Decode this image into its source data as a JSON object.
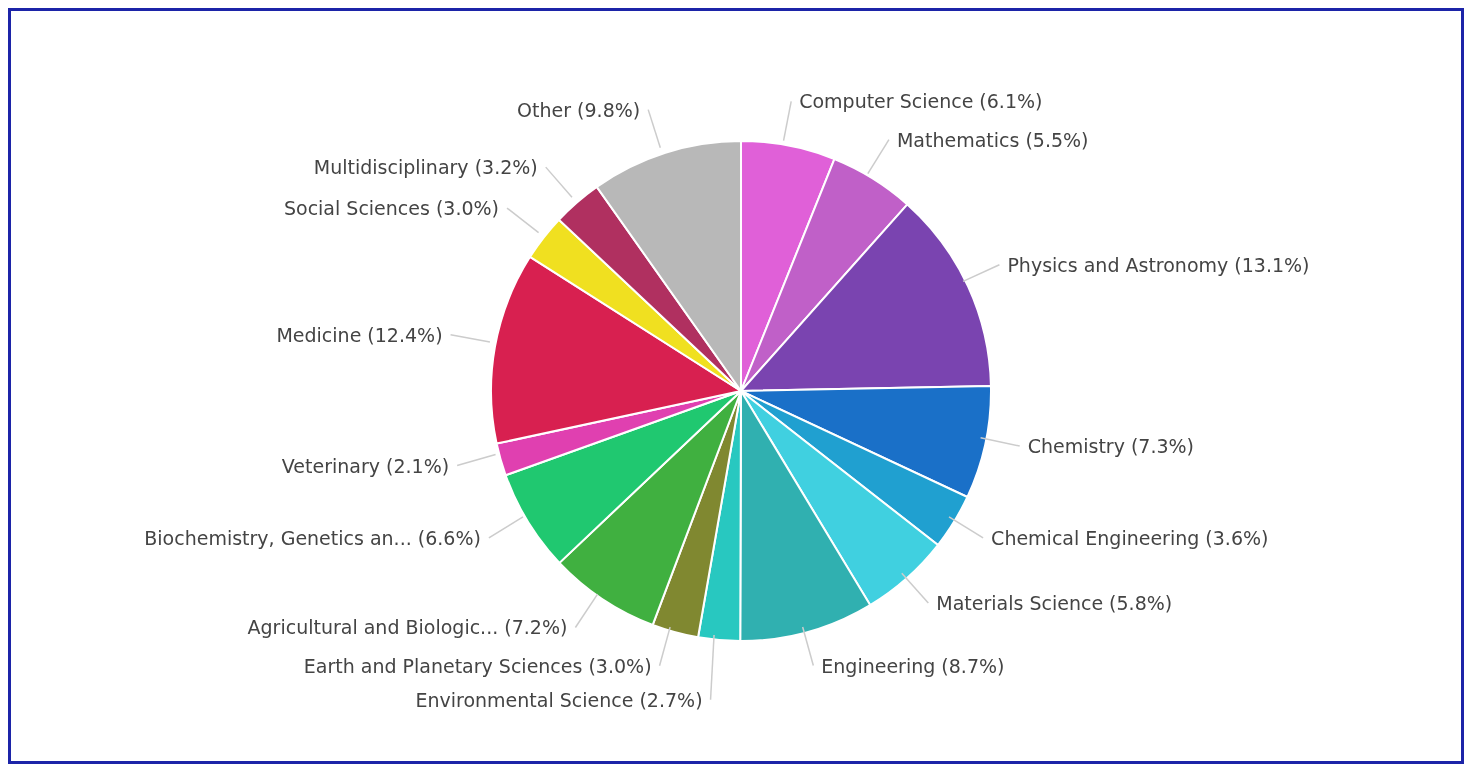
{
  "chart_data": {
    "type": "pie",
    "categories": [
      "Computer Science",
      "Mathematics",
      "Physics and Astronomy",
      "Chemistry",
      "Chemical Engineering",
      "Materials Science",
      "Engineering",
      "Environmental Science",
      "Earth and Planetary Sciences",
      "Agricultural and Biologic...",
      "Biochemistry, Genetics an...",
      "Veterinary",
      "Medicine",
      "Social Sciences",
      "Multidisciplinary",
      "Other"
    ],
    "values": [
      6.1,
      5.5,
      13.1,
      7.3,
      3.6,
      5.8,
      8.7,
      2.7,
      3.0,
      7.2,
      6.6,
      2.1,
      12.4,
      3.0,
      3.2,
      9.8
    ],
    "value_labels": [
      "(6.1%)",
      "(5.5%)",
      "(13.1%)",
      "(7.3%)",
      "(3.6%)",
      "(5.8%)",
      "(8.7%)",
      "(2.7%)",
      "(3.0%)",
      "(7.2%)",
      "(6.6%)",
      "(2.1%)",
      "(12.4%)",
      "(3.0%)",
      "(3.2%)",
      "(9.8%)"
    ],
    "colors": [
      "#e060d8",
      "#c060c8",
      "#7a44b0",
      "#1a70c8",
      "#20a0d0",
      "#40d0e0",
      "#30b0b0",
      "#28c8c0",
      "#808830",
      "#40b040",
      "#20c870",
      "#e040b0",
      "#d82050",
      "#f0e020",
      "#b03060",
      "#b8b8b8"
    ],
    "legend": false
  }
}
